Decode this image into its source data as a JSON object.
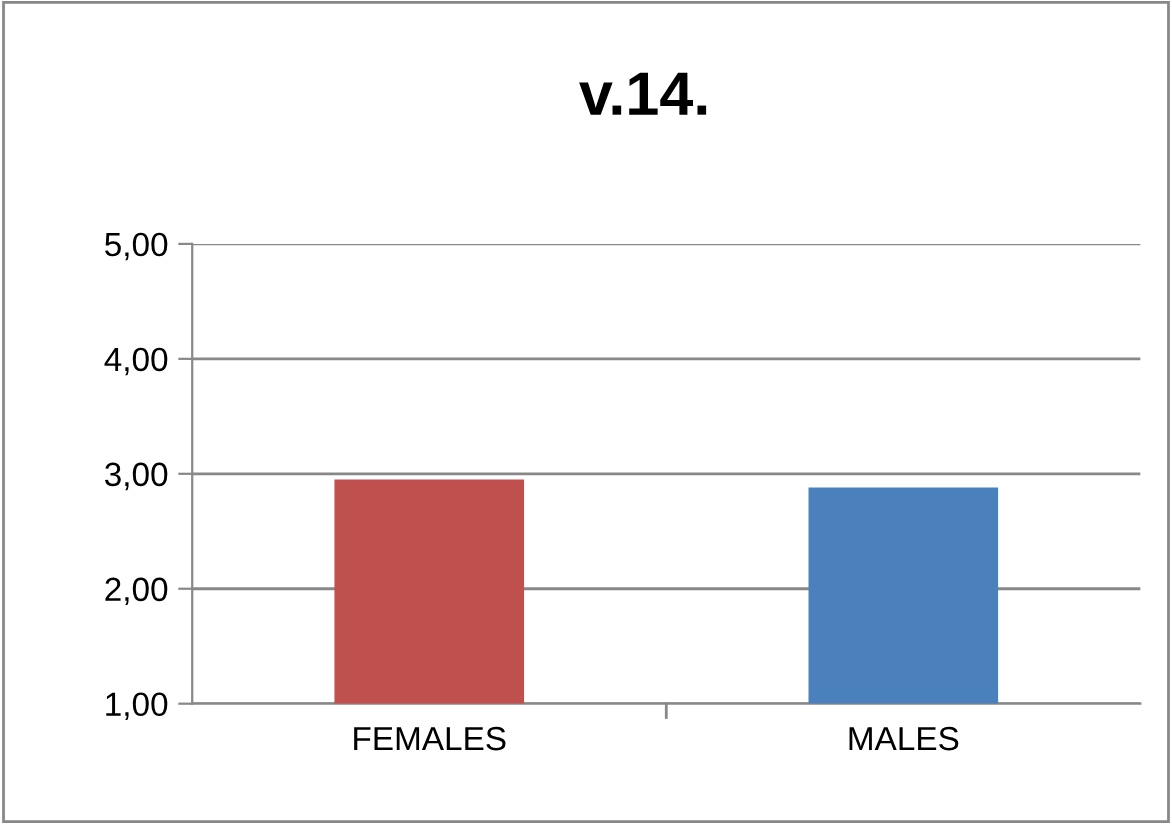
{
  "chart_data": {
    "type": "bar",
    "title": "v.14.",
    "categories": [
      "FEMALES",
      "MALES"
    ],
    "values": [
      2.95,
      2.88
    ],
    "colors": [
      "#c0504d",
      "#4a81bd"
    ],
    "ylim": [
      1,
      5
    ],
    "yticks": [
      {
        "value": 1,
        "label": "1,00"
      },
      {
        "value": 2,
        "label": "2,00"
      },
      {
        "value": 3,
        "label": "3,00"
      },
      {
        "value": 4,
        "label": "4,00"
      },
      {
        "value": 5,
        "label": "5,00"
      }
    ],
    "grid": "y",
    "legend": false
  }
}
